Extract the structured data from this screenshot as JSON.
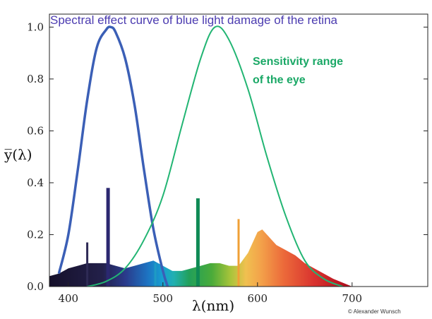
{
  "chart_data": {
    "type": "line",
    "title": "Spectral effect curve of blue light damage of the retina",
    "xlabel": "λ(nm)",
    "ylabel": "y̅(λ)",
    "xlim": [
      380,
      780
    ],
    "ylim": [
      0,
      1.05
    ],
    "x_ticks": [
      400,
      500,
      600,
      700
    ],
    "y_ticks": [
      0.0,
      0.2,
      0.4,
      0.6,
      0.8,
      1.0
    ],
    "y_tick_labels": [
      "0.0",
      "0.2",
      "0.4",
      "0.6",
      "0.8",
      "1.0"
    ],
    "series": [
      {
        "name": "Spectral effect curve of blue light damage of the retina",
        "color": "#3b5fb6",
        "x": [
          390,
          400,
          410,
          420,
          430,
          440,
          445,
          450,
          460,
          470,
          480,
          490,
          500,
          505
        ],
        "y": [
          0.05,
          0.2,
          0.45,
          0.72,
          0.92,
          0.99,
          1.0,
          0.98,
          0.88,
          0.7,
          0.45,
          0.22,
          0.06,
          0.0
        ]
      },
      {
        "name": "Sensitivity range of the eye",
        "color": "#22b573",
        "x": [
          420,
          440,
          460,
          480,
          500,
          520,
          540,
          555,
          570,
          590,
          610,
          630,
          650,
          670,
          690
        ],
        "y": [
          0.0,
          0.02,
          0.07,
          0.18,
          0.35,
          0.62,
          0.88,
          1.0,
          0.95,
          0.76,
          0.5,
          0.27,
          0.1,
          0.03,
          0.0
        ]
      }
    ],
    "spectrum": {
      "x": [
        380,
        390,
        400,
        410,
        420,
        430,
        440,
        450,
        460,
        470,
        480,
        490,
        500,
        510,
        520,
        530,
        540,
        550,
        560,
        570,
        580,
        590,
        600,
        605,
        610,
        620,
        630,
        640,
        650,
        660,
        670,
        680,
        690,
        700
      ],
      "y": [
        0.04,
        0.05,
        0.07,
        0.08,
        0.09,
        0.09,
        0.09,
        0.08,
        0.07,
        0.08,
        0.09,
        0.1,
        0.08,
        0.06,
        0.06,
        0.07,
        0.08,
        0.09,
        0.09,
        0.08,
        0.08,
        0.13,
        0.21,
        0.22,
        0.2,
        0.16,
        0.14,
        0.12,
        0.09,
        0.07,
        0.05,
        0.03,
        0.015,
        0.0
      ]
    },
    "spikes": [
      {
        "x": 420,
        "y": 0.17,
        "color": "#2e2a55"
      },
      {
        "x": 442,
        "y": 0.38,
        "color": "#2b2870"
      },
      {
        "x": 492,
        "y": 0.09,
        "color": "#1e9bc4"
      },
      {
        "x": 537,
        "y": 0.34,
        "color": "#0f8a55"
      },
      {
        "x": 580,
        "y": 0.26,
        "color": "#f0a036"
      }
    ],
    "annotations": {
      "sensitivity_line1": "Sensitivity range",
      "sensitivity_line2": "of the eye"
    },
    "credit": "© Alexander Wunsch",
    "colors": {
      "blue_curve": "#3b5fb6",
      "green_curve": "#22b573",
      "title_text": "#4b3bb0",
      "annotation_text": "#1aa866"
    }
  }
}
